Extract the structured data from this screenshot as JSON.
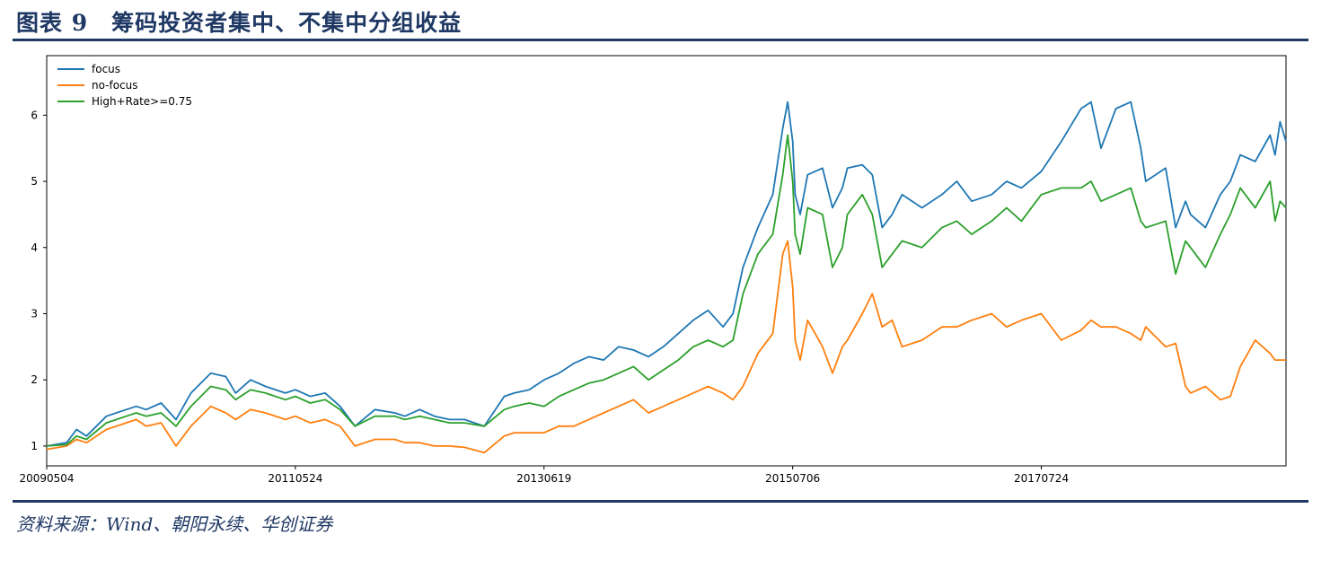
{
  "header": {
    "title": "图表 9　筹码投资者集中、不集中分组收益"
  },
  "footer": {
    "source": "资料来源：Wind、朝阳永续、华创证券"
  },
  "colors": {
    "focus": "#1f77b4",
    "no_focus": "#ff7f0e",
    "high_rate": "#2ca02c",
    "rule": "#1f3864"
  },
  "chart_data": {
    "type": "line",
    "title": "",
    "xlabel": "",
    "ylabel": "",
    "x_tick_labels": [
      "20090504",
      "20110524",
      "20130619",
      "20150706",
      "20170724"
    ],
    "x_tick_positions": [
      0,
      500,
      1000,
      1500,
      2000
    ],
    "x_range": [
      0,
      2492
    ],
    "ylim": [
      0.7,
      6.9
    ],
    "y_ticks": [
      1,
      2,
      3,
      4,
      5,
      6
    ],
    "grid": true,
    "legend_position": "top-left",
    "series": [
      {
        "name": "focus",
        "x": [
          0,
          40,
          60,
          80,
          120,
          160,
          180,
          200,
          230,
          260,
          290,
          330,
          360,
          380,
          410,
          440,
          480,
          500,
          530,
          560,
          590,
          620,
          660,
          700,
          720,
          750,
          780,
          810,
          840,
          880,
          920,
          940,
          970,
          1000,
          1030,
          1060,
          1090,
          1120,
          1150,
          1180,
          1210,
          1240,
          1270,
          1300,
          1330,
          1360,
          1380,
          1400,
          1430,
          1460,
          1480,
          1490,
          1500,
          1505,
          1515,
          1530,
          1560,
          1580,
          1600,
          1610,
          1640,
          1660,
          1680,
          1700,
          1720,
          1760,
          1800,
          1830,
          1860,
          1900,
          1930,
          1960,
          2000,
          2040,
          2080,
          2100,
          2120,
          2150,
          2180,
          2200,
          2210,
          2250,
          2270,
          2290,
          2300,
          2330,
          2360,
          2380,
          2400,
          2430,
          2460,
          2470,
          2480,
          2492
        ],
        "y": [
          1.0,
          1.05,
          1.25,
          1.15,
          1.45,
          1.55,
          1.6,
          1.55,
          1.65,
          1.4,
          1.8,
          2.1,
          2.05,
          1.8,
          2.0,
          1.9,
          1.8,
          1.85,
          1.75,
          1.8,
          1.6,
          1.3,
          1.55,
          1.5,
          1.45,
          1.55,
          1.45,
          1.4,
          1.4,
          1.3,
          1.75,
          1.8,
          1.85,
          2.0,
          2.1,
          2.25,
          2.35,
          2.3,
          2.5,
          2.45,
          2.35,
          2.5,
          2.7,
          2.9,
          3.05,
          2.8,
          3.0,
          3.7,
          4.3,
          4.8,
          5.8,
          6.2,
          5.6,
          4.8,
          4.5,
          5.1,
          5.2,
          4.6,
          4.9,
          5.2,
          5.25,
          5.1,
          4.3,
          4.5,
          4.8,
          4.6,
          4.8,
          5.0,
          4.7,
          4.8,
          5.0,
          4.9,
          5.15,
          5.6,
          6.1,
          6.2,
          5.5,
          6.1,
          6.2,
          5.5,
          5.0,
          5.2,
          4.3,
          4.7,
          4.5,
          4.3,
          4.8,
          5.0,
          5.4,
          5.3,
          5.7,
          5.4,
          5.9,
          5.6
        ]
      },
      {
        "name": "no-focus",
        "x": [
          0,
          40,
          60,
          80,
          120,
          160,
          180,
          200,
          230,
          260,
          290,
          330,
          360,
          380,
          410,
          440,
          480,
          500,
          530,
          560,
          590,
          620,
          660,
          700,
          720,
          750,
          780,
          810,
          840,
          880,
          920,
          940,
          970,
          1000,
          1030,
          1060,
          1090,
          1120,
          1150,
          1180,
          1210,
          1240,
          1270,
          1300,
          1330,
          1360,
          1380,
          1400,
          1430,
          1460,
          1480,
          1490,
          1500,
          1505,
          1515,
          1530,
          1560,
          1580,
          1600,
          1610,
          1640,
          1660,
          1680,
          1700,
          1720,
          1760,
          1800,
          1830,
          1860,
          1900,
          1930,
          1960,
          2000,
          2040,
          2080,
          2100,
          2120,
          2150,
          2180,
          2200,
          2210,
          2250,
          2270,
          2290,
          2300,
          2330,
          2360,
          2380,
          2400,
          2430,
          2460,
          2470,
          2480,
          2492
        ],
        "y": [
          0.95,
          1.0,
          1.1,
          1.05,
          1.25,
          1.35,
          1.4,
          1.3,
          1.35,
          1.0,
          1.3,
          1.6,
          1.5,
          1.4,
          1.55,
          1.5,
          1.4,
          1.45,
          1.35,
          1.4,
          1.3,
          1.0,
          1.1,
          1.1,
          1.05,
          1.05,
          1.0,
          1.0,
          0.98,
          0.9,
          1.15,
          1.2,
          1.2,
          1.2,
          1.3,
          1.3,
          1.4,
          1.5,
          1.6,
          1.7,
          1.5,
          1.6,
          1.7,
          1.8,
          1.9,
          1.8,
          1.7,
          1.9,
          2.4,
          2.7,
          3.9,
          4.1,
          3.4,
          2.6,
          2.3,
          2.9,
          2.5,
          2.1,
          2.5,
          2.6,
          3.0,
          3.3,
          2.8,
          2.9,
          2.5,
          2.6,
          2.8,
          2.8,
          2.9,
          3.0,
          2.8,
          2.9,
          3.0,
          2.6,
          2.75,
          2.9,
          2.8,
          2.8,
          2.7,
          2.6,
          2.8,
          2.5,
          2.55,
          1.9,
          1.8,
          1.9,
          1.7,
          1.75,
          2.2,
          2.6,
          2.4,
          2.3,
          2.3,
          2.3
        ]
      },
      {
        "name": "High+Rate>=0.75",
        "x": [
          0,
          40,
          60,
          80,
          120,
          160,
          180,
          200,
          230,
          260,
          290,
          330,
          360,
          380,
          410,
          440,
          480,
          500,
          530,
          560,
          590,
          620,
          660,
          700,
          720,
          750,
          780,
          810,
          840,
          880,
          920,
          940,
          970,
          1000,
          1030,
          1060,
          1090,
          1120,
          1150,
          1180,
          1210,
          1240,
          1270,
          1300,
          1330,
          1360,
          1380,
          1400,
          1430,
          1460,
          1480,
          1490,
          1500,
          1505,
          1515,
          1530,
          1560,
          1580,
          1600,
          1610,
          1640,
          1660,
          1680,
          1700,
          1720,
          1760,
          1800,
          1830,
          1860,
          1900,
          1930,
          1960,
          2000,
          2040,
          2080,
          2100,
          2120,
          2150,
          2180,
          2200,
          2210,
          2250,
          2270,
          2290,
          2300,
          2330,
          2360,
          2380,
          2400,
          2430,
          2460,
          2470,
          2480,
          2492
        ],
        "y": [
          1.0,
          1.02,
          1.15,
          1.1,
          1.35,
          1.45,
          1.5,
          1.45,
          1.5,
          1.3,
          1.6,
          1.9,
          1.85,
          1.7,
          1.85,
          1.8,
          1.7,
          1.75,
          1.65,
          1.7,
          1.55,
          1.3,
          1.45,
          1.45,
          1.4,
          1.45,
          1.4,
          1.35,
          1.35,
          1.3,
          1.55,
          1.6,
          1.65,
          1.6,
          1.75,
          1.85,
          1.95,
          2.0,
          2.1,
          2.2,
          2.0,
          2.15,
          2.3,
          2.5,
          2.6,
          2.5,
          2.6,
          3.3,
          3.9,
          4.2,
          5.1,
          5.7,
          5.0,
          4.2,
          3.9,
          4.6,
          4.5,
          3.7,
          4.0,
          4.5,
          4.8,
          4.5,
          3.7,
          3.9,
          4.1,
          4.0,
          4.3,
          4.4,
          4.2,
          4.4,
          4.6,
          4.4,
          4.8,
          4.9,
          4.9,
          5.0,
          4.7,
          4.8,
          4.9,
          4.4,
          4.3,
          4.4,
          3.6,
          4.1,
          4.0,
          3.7,
          4.2,
          4.5,
          4.9,
          4.6,
          5.0,
          4.4,
          4.7,
          4.6
        ]
      }
    ]
  }
}
